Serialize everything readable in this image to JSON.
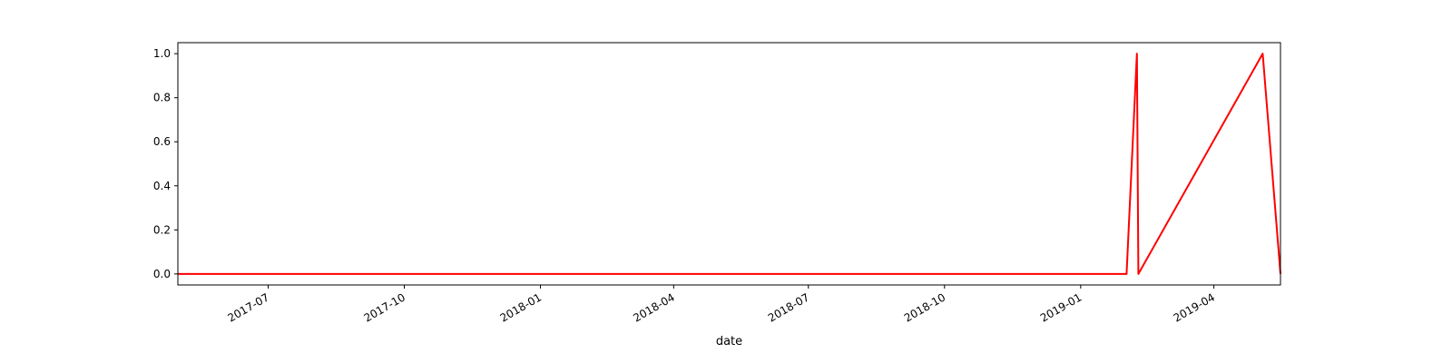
{
  "chart_data": {
    "type": "line",
    "title": "",
    "xlabel": "date",
    "ylabel": "",
    "xlim": [
      "2017-05-01",
      "2019-05-16"
    ],
    "ylim": [
      -0.05,
      1.05
    ],
    "grid": false,
    "legend": "none",
    "x_ticks": [
      "2017-07",
      "2017-10",
      "2018-01",
      "2018-04",
      "2018-07",
      "2018-10",
      "2019-01",
      "2019-04"
    ],
    "y_ticks": [
      "0.0",
      "0.2",
      "0.4",
      "0.6",
      "0.8",
      "1.0"
    ],
    "series": [
      {
        "color": "#ff0000",
        "x": [
          "2017-05-01",
          "2019-02-01",
          "2019-02-08",
          "2019-02-09",
          "2019-05-04",
          "2019-05-16"
        ],
        "y": [
          0,
          0,
          1,
          0,
          1,
          0
        ]
      }
    ]
  }
}
